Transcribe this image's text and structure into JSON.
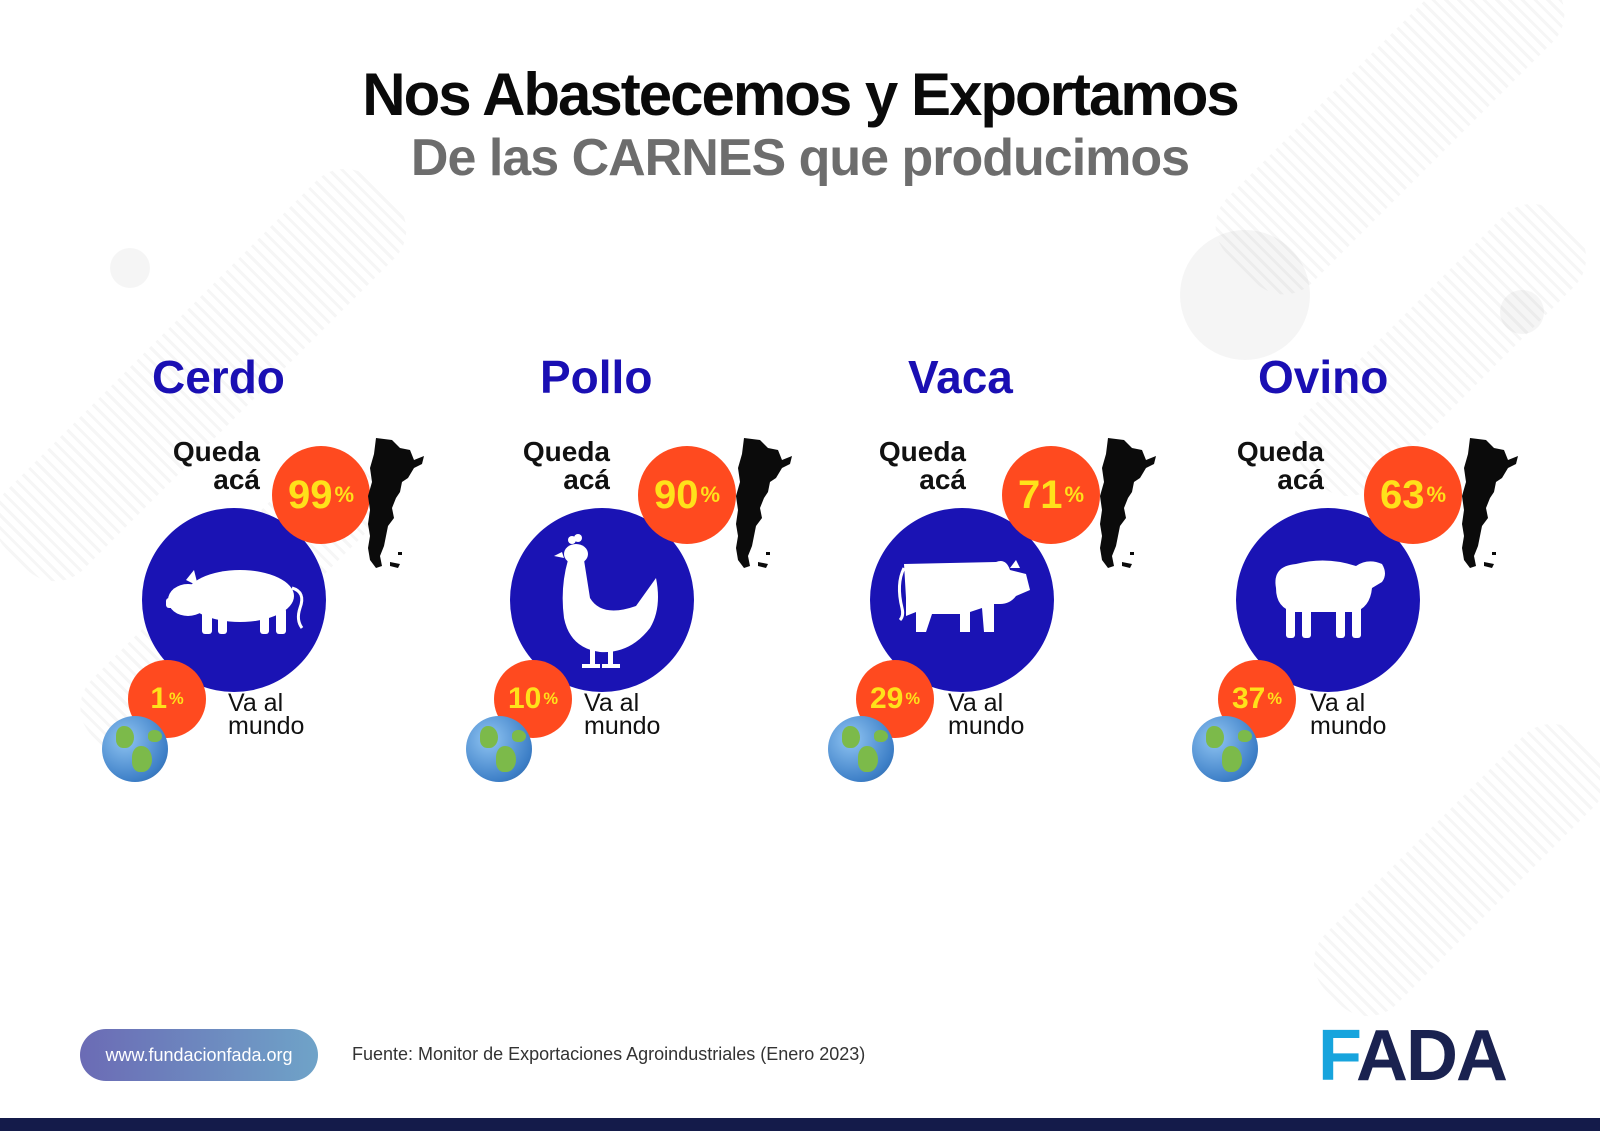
{
  "header": {
    "title_line1": "Nos Abastecemos y Exportamos",
    "title_line2": "De las CARNES  que producimos"
  },
  "cards": [
    {
      "name": "Cerdo",
      "queda_label": "Queda acá",
      "stays_pct": "99",
      "world_pct": "1",
      "world_label": "Va al mundo",
      "icon": "pig-icon"
    },
    {
      "name": "Pollo",
      "queda_label": "Queda acá",
      "stays_pct": "90",
      "world_pct": "10",
      "world_label": "Va al mundo",
      "icon": "chicken-icon"
    },
    {
      "name": "Vaca",
      "queda_label": "Queda acá",
      "stays_pct": "71",
      "world_pct": "29",
      "world_label": "Va al mundo",
      "icon": "cow-icon"
    },
    {
      "name": "Ovino",
      "queda_label": "Queda acá",
      "stays_pct": "63",
      "world_pct": "37",
      "world_label": "Va al mundo",
      "icon": "sheep-icon"
    }
  ],
  "percent_symbol": "%",
  "footer": {
    "website": "www.fundacionfada.org",
    "source": "Fuente: Monitor de Exportaciones Agroindustriales (Enero 2023)",
    "logo_first": "F",
    "logo_rest": "ADA"
  },
  "colors": {
    "title_blue": "#1a0fb3",
    "circle_blue": "#1a13b4",
    "orange": "#ff4a1f",
    "yellow": "#ffe11a",
    "logo_navy": "#1a2250",
    "logo_cyan": "#17a4dd"
  }
}
